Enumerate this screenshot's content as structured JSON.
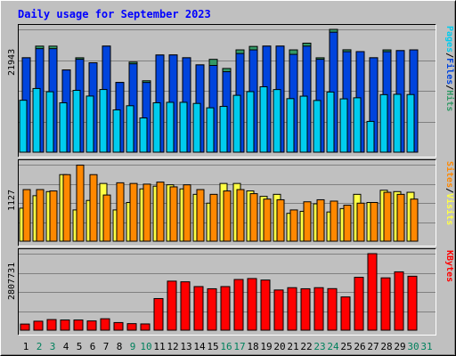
{
  "chart_data": {
    "title": "Daily usage for September 2023",
    "days": [
      "1",
      "2",
      "3",
      "4",
      "5",
      "6",
      "7",
      "8",
      "9",
      "10",
      "11",
      "12",
      "13",
      "14",
      "15",
      "16",
      "17",
      "18",
      "19",
      "20",
      "21",
      "22",
      "23",
      "24",
      "25",
      "26",
      "27",
      "28",
      "29",
      "30",
      "31"
    ],
    "weekend_days": [
      "2",
      "3",
      "9",
      "10",
      "16",
      "17",
      "23",
      "24",
      "30",
      "31"
    ],
    "colors": {
      "title": "#0000ff",
      "hits": "#339966",
      "files": "#0044dd",
      "pages": "#00ccee",
      "visits": "#ffff44",
      "sites": "#ff8800",
      "kbytes": "#ff0000",
      "weekday_label": "#000000",
      "weekend_label": "#00805c"
    },
    "panels": [
      {
        "id": "top",
        "type": "bar",
        "ymax_label": "21943",
        "ymax": 21943,
        "legend": [
          {
            "label": "Pages",
            "color": "#00ccee"
          },
          {
            "label": "/",
            "color": "#000000"
          },
          {
            "label": "Files",
            "color": "#0044dd"
          },
          {
            "label": "/",
            "color": "#000000"
          },
          {
            "label": "Hits",
            "color": "#339966"
          }
        ],
        "series": [
          {
            "key": "hits",
            "values": [
              16870,
              18950,
              18950,
              14690,
              16870,
              15980,
              18950,
              12460,
              16100,
              12760,
              17360,
              17370,
              16870,
              15600,
              16590,
              14960,
              18280,
              18900,
              18950,
              18950,
              18280,
              19480,
              16870,
              21940,
              18300,
              17970,
              16870,
              18280,
              18150,
              18280,
              null
            ]
          },
          {
            "key": "files",
            "values": [
              16870,
              18500,
              18500,
              14690,
              16600,
              15980,
              18950,
              12460,
              15790,
              12460,
              17360,
              17370,
              16870,
              15600,
              15500,
              14380,
              17630,
              18280,
              18950,
              18950,
              17480,
              18950,
              16600,
              21440,
              17960,
              17970,
              16870,
              17960,
              18150,
              18280,
              null
            ]
          },
          {
            "key": "pages",
            "values": [
              9280,
              11380,
              10800,
              8820,
              11050,
              10030,
              11200,
              7560,
              8300,
              6120,
              8830,
              8910,
              8910,
              8710,
              7930,
              8180,
              10160,
              10820,
              11690,
              11190,
              9570,
              10010,
              9240,
              10750,
              9530,
              9720,
              5500,
              10280,
              10340,
              10300,
              null
            ]
          }
        ]
      },
      {
        "id": "middle",
        "type": "bar",
        "ymax_label": "1127",
        "ymax": 1127,
        "legend": [
          {
            "label": "Sites",
            "color": "#ff8800"
          },
          {
            "label": "/",
            "color": "#000000"
          },
          {
            "label": "Visits",
            "color": "#ffff44"
          }
        ],
        "series": [
          {
            "key": "visits",
            "values": [
              486,
              670,
              730,
              980,
              460,
              600,
              850,
              460,
              570,
              770,
              810,
              830,
              770,
              690,
              560,
              850,
              850,
              740,
              660,
              690,
              410,
              440,
              550,
              430,
              480,
              690,
              570,
              750,
              730,
              720,
              null
            ]
          },
          {
            "key": "sites",
            "values": [
              760,
              760,
              740,
              980,
              1120,
              980,
              680,
              860,
              850,
              840,
              870,
              800,
              830,
              760,
              690,
              740,
              760,
              700,
              620,
              610,
              460,
              580,
              610,
              590,
              530,
              560,
              570,
              720,
              690,
              620,
              null
            ]
          }
        ]
      },
      {
        "id": "bottom",
        "type": "bar",
        "ymax_label": "2807731",
        "ymax": 2807731,
        "legend": [
          {
            "label": "KBytes",
            "color": "#ff0000"
          }
        ],
        "series": [
          {
            "key": "kbytes",
            "values": [
              225000,
              330000,
              390000,
              375000,
              375000,
              340000,
              420000,
              280000,
              240000,
              230000,
              1160000,
              1800000,
              1775000,
              1600000,
              1520000,
              1600000,
              1860000,
              1895000,
              1840000,
              1475000,
              1560000,
              1520000,
              1560000,
              1525000,
              1220000,
              1940000,
              2807731,
              1920000,
              2140000,
              1980000,
              null
            ]
          }
        ]
      }
    ]
  }
}
